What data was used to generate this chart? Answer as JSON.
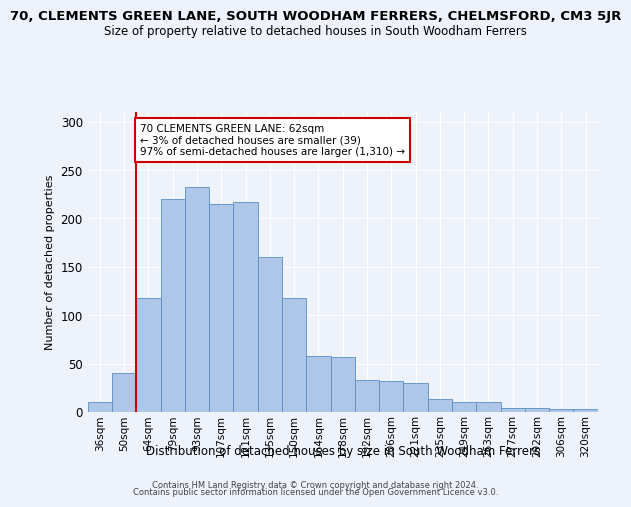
{
  "title": "70, CLEMENTS GREEN LANE, SOUTH WOODHAM FERRERS, CHELMSFORD, CM3 5JR",
  "subtitle": "Size of property relative to detached houses in South Woodham Ferrers",
  "xlabel": "Distribution of detached houses by size in South Woodham Ferrers",
  "ylabel": "Number of detached properties",
  "bins": [
    "36sqm",
    "50sqm",
    "64sqm",
    "79sqm",
    "93sqm",
    "107sqm",
    "121sqm",
    "135sqm",
    "150sqm",
    "164sqm",
    "178sqm",
    "192sqm",
    "206sqm",
    "221sqm",
    "235sqm",
    "249sqm",
    "263sqm",
    "277sqm",
    "292sqm",
    "306sqm",
    "320sqm"
  ],
  "values": [
    10,
    40,
    118,
    220,
    232,
    215,
    217,
    160,
    118,
    58,
    57,
    33,
    32,
    30,
    13,
    10,
    10,
    4,
    4,
    3,
    3
  ],
  "bar_color": "#aec6e8",
  "bar_edge_color": "#5a8fc0",
  "annotation_line1": "70 CLEMENTS GREEN LANE: 62sqm",
  "annotation_line2": "← 3% of detached houses are smaller (39)",
  "annotation_line3": "97% of semi-detached houses are larger (1,310) →",
  "annotation_box_color": "#ffffff",
  "annotation_box_edge": "#cc0000",
  "property_line_x": 1.5,
  "ylim": [
    0,
    310
  ],
  "yticks": [
    0,
    50,
    100,
    150,
    200,
    250,
    300
  ],
  "footer1": "Contains HM Land Registry data © Crown copyright and database right 2024.",
  "footer2": "Contains public sector information licensed under the Open Government Licence v3.0.",
  "bg_color": "#eef2fa",
  "grid_color": "#ffffff",
  "title_fontsize": 9.5,
  "subtitle_fontsize": 8.5
}
